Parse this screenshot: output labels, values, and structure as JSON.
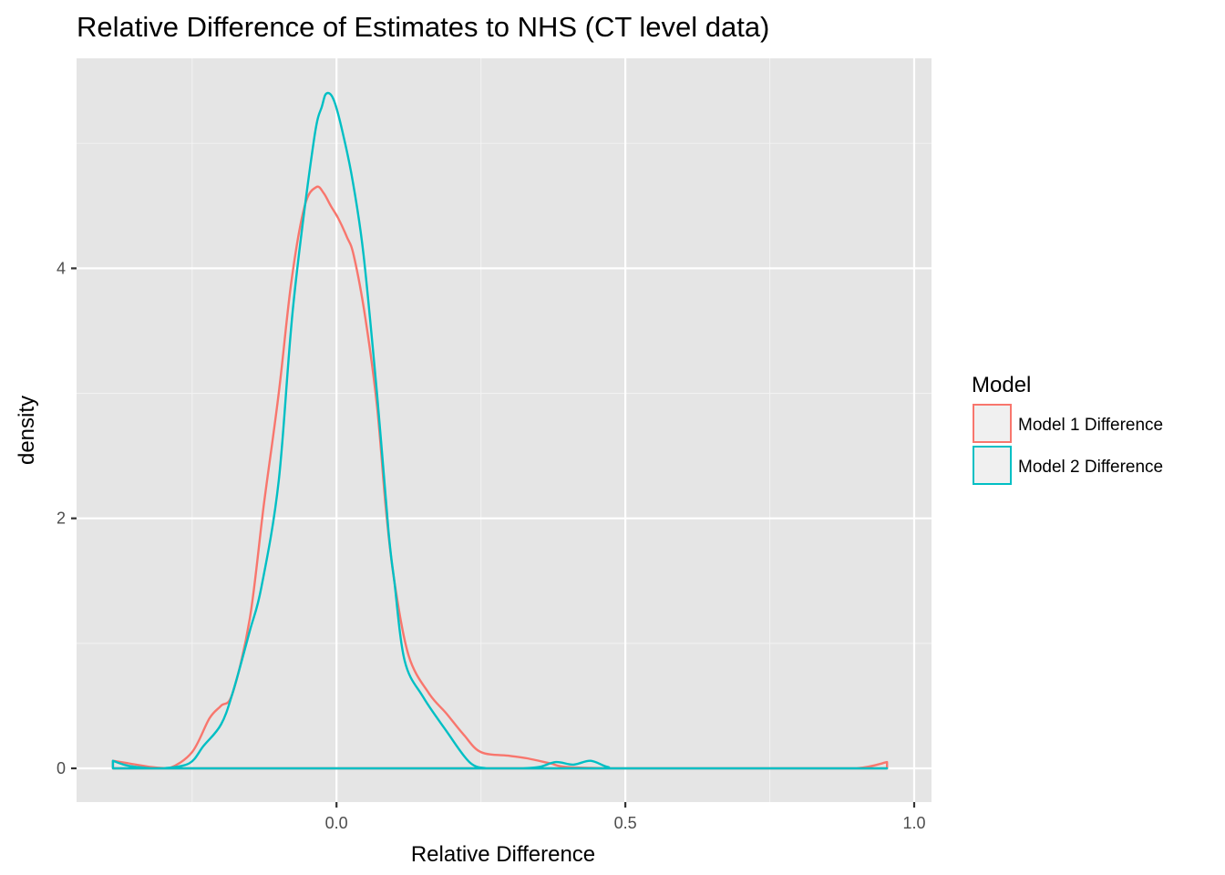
{
  "chart_data": {
    "type": "line",
    "subtype": "density",
    "title": "Relative Difference of Estimates to NHS (CT level data)",
    "xlabel": "Relative Difference",
    "ylabel": "density",
    "xlim": [
      -0.45,
      1.03
    ],
    "ylim": [
      -0.27,
      5.68
    ],
    "x_ticks": [
      0.0,
      0.5,
      1.0
    ],
    "x_tick_labels": [
      "0.0",
      "0.5",
      "1.0"
    ],
    "x_minor_gridlines": [
      -0.25,
      0.25,
      0.75
    ],
    "y_ticks": [
      0,
      2,
      4
    ],
    "y_tick_labels": [
      "0",
      "2",
      "4"
    ],
    "y_minor_gridlines": [
      1,
      3,
      5
    ],
    "grid": true,
    "panel_background": "#e5e5e5",
    "legend": {
      "title": "Model",
      "position": "right",
      "entries": [
        {
          "label": "Model 1 Difference",
          "color": "#f8766d"
        },
        {
          "label": "Model 2 Difference",
          "color": "#00bfc4"
        }
      ]
    },
    "series": [
      {
        "name": "Model 1 Difference",
        "color": "#f8766d",
        "x": [
          -0.387,
          -0.36,
          -0.32,
          -0.29,
          -0.25,
          -0.22,
          -0.2,
          -0.18,
          -0.15,
          -0.126,
          -0.1,
          -0.078,
          -0.055,
          -0.035,
          -0.022,
          -0.01,
          0.003,
          0.018,
          0.03,
          0.05,
          0.07,
          0.086,
          0.1,
          0.125,
          0.16,
          0.19,
          0.22,
          0.25,
          0.3,
          0.33,
          0.37,
          0.4,
          0.5,
          0.8,
          0.9,
          0.953
        ],
        "y": [
          0.06,
          0.04,
          0.01,
          0.0,
          0.13,
          0.4,
          0.5,
          0.6,
          1.2,
          2.1,
          3.0,
          3.9,
          4.5,
          4.65,
          4.6,
          4.5,
          4.4,
          4.25,
          4.1,
          3.6,
          2.9,
          2.05,
          1.5,
          0.9,
          0.6,
          0.44,
          0.27,
          0.13,
          0.1,
          0.08,
          0.04,
          0.01,
          0.0,
          0.0,
          0.0,
          0.05
        ]
      },
      {
        "name": "Model 2 Difference",
        "color": "#00bfc4",
        "x": [
          -0.387,
          -0.36,
          -0.32,
          -0.3,
          -0.255,
          -0.23,
          -0.2,
          -0.18,
          -0.15,
          -0.13,
          -0.1,
          -0.075,
          -0.04,
          -0.025,
          -0.017,
          -0.005,
          0.01,
          0.028,
          0.047,
          0.07,
          0.09,
          0.1,
          0.118,
          0.15,
          0.19,
          0.23,
          0.26,
          0.29,
          0.32,
          0.35,
          0.38,
          0.41,
          0.44,
          0.47,
          0.5,
          0.8,
          0.953
        ],
        "y": [
          0.06,
          0.02,
          0.0,
          0.0,
          0.04,
          0.18,
          0.35,
          0.6,
          1.1,
          1.45,
          2.3,
          3.7,
          5.0,
          5.3,
          5.4,
          5.35,
          5.1,
          4.7,
          4.1,
          3.0,
          1.9,
          1.5,
          0.86,
          0.57,
          0.3,
          0.05,
          0.0,
          0.0,
          0.0,
          0.01,
          0.05,
          0.03,
          0.06,
          0.01,
          0.0,
          0.0,
          0.0
        ]
      }
    ]
  }
}
